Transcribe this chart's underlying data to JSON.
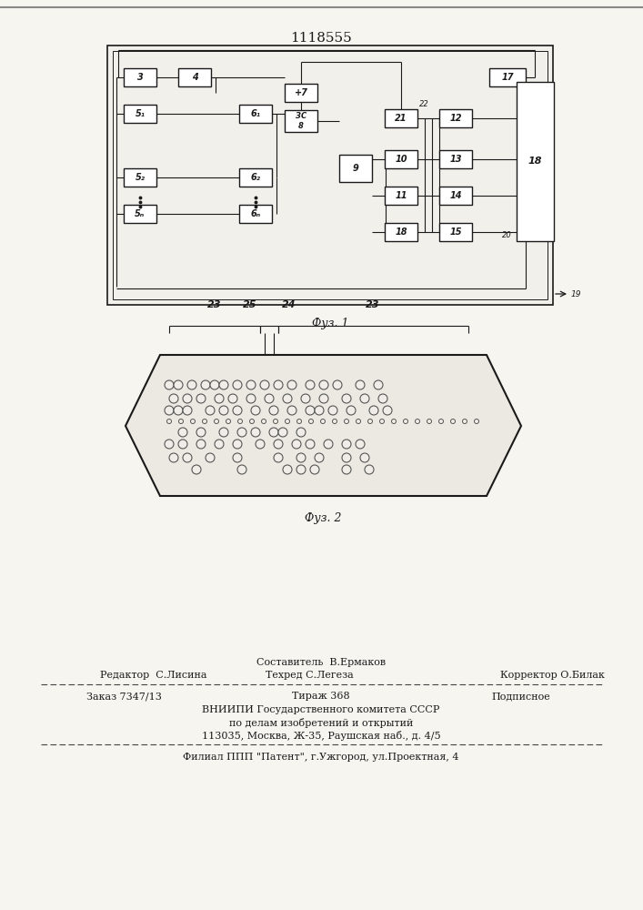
{
  "patent_number": "1118555",
  "fig1_caption": "Фуз. 1",
  "fig2_caption": "Фуз. 2",
  "background_color": "#f7f5f0",
  "line_color": "#1a1a1a",
  "box_color": "#ffffff",
  "label_23_left": "23",
  "label_23_right": "23",
  "label_24": "24",
  "label_25": "25",
  "footer_sestavitel": "Составитель  В.Ермаков",
  "footer_redaktor": "Редактор  С.Лисина",
  "footer_tehred": "Техред С.Легеза",
  "footer_korrektor": "Корректор О.Билак",
  "footer_zakaz": "Заказ 7347/13",
  "footer_tirazh": "Тираж 368",
  "footer_podpisnoe": "Подписное",
  "footer_vniipи": "ВНИИПИ Государственного комитета СССР",
  "footer_po_delam": "по делам изобретений и открытий",
  "footer_address": "113035, Москва, Ж-35, Раушская наб., д. 4/5",
  "footer_filial": "Филиал ППП \"Патент\", г.Ужгород, ул.Проектная, 4"
}
